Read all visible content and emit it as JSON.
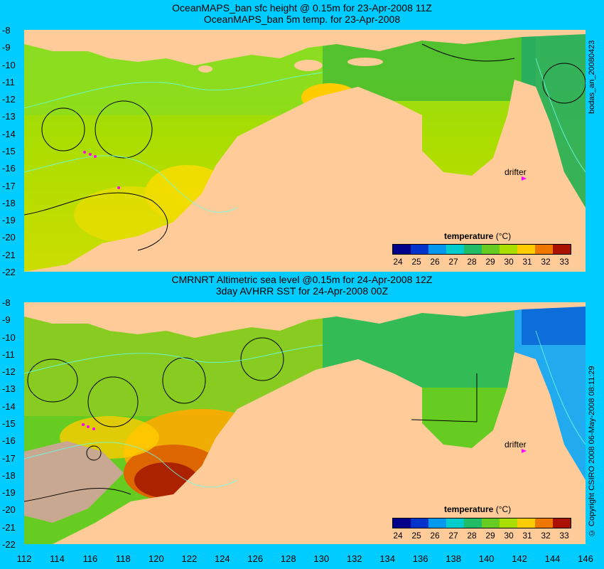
{
  "top_panel": {
    "title_line1": "OceanMAPS_ban sfc height @ 0.15m for 23-Apr-2008 11Z",
    "title_line2": "OceanMAPS_ban 5m temp. for 23-Apr-2008",
    "side_label": "bodas_an_20080423",
    "drifter_label": "drifter",
    "legend_title": "temperature",
    "legend_unit": "(°C)"
  },
  "bottom_panel": {
    "title_line1": "CMRNRT Altimetric sea level  @0.15m  for 24-Apr-2008 12Z",
    "title_line2": "3day AVHRR SST for 24-Apr-2008 00Z",
    "side_label": "© Copyright CSIRO 2008  06-May-2008 08:11:29",
    "drifter_label": "drifter",
    "legend_title": "temperature",
    "legend_unit": "(°C)"
  },
  "colorbar_ticks": [
    "24",
    "25",
    "26",
    "27",
    "28",
    "29",
    "30",
    "31",
    "32",
    "33"
  ],
  "colorbar_colors": [
    "#00008b",
    "#0033cc",
    "#0099ee",
    "#00cccc",
    "#22bb66",
    "#66cc22",
    "#aadd00",
    "#ffcc00",
    "#ee7700",
    "#aa1100"
  ],
  "y_ticks": [
    "-8",
    "-9",
    "-10",
    "-11",
    "-12",
    "-13",
    "-14",
    "-15",
    "-16",
    "-17",
    "-18",
    "-19",
    "-20",
    "-21",
    "-22"
  ],
  "x_ticks": [
    "112",
    "114",
    "116",
    "118",
    "120",
    "122",
    "124",
    "126",
    "128",
    "130",
    "132",
    "134",
    "136",
    "138",
    "140",
    "142",
    "144",
    "146"
  ],
  "colors": {
    "background": "#00ccff",
    "land": "#ffcc99",
    "ocean_warm": "#66cc22",
    "drifter": "#ff00ff"
  }
}
